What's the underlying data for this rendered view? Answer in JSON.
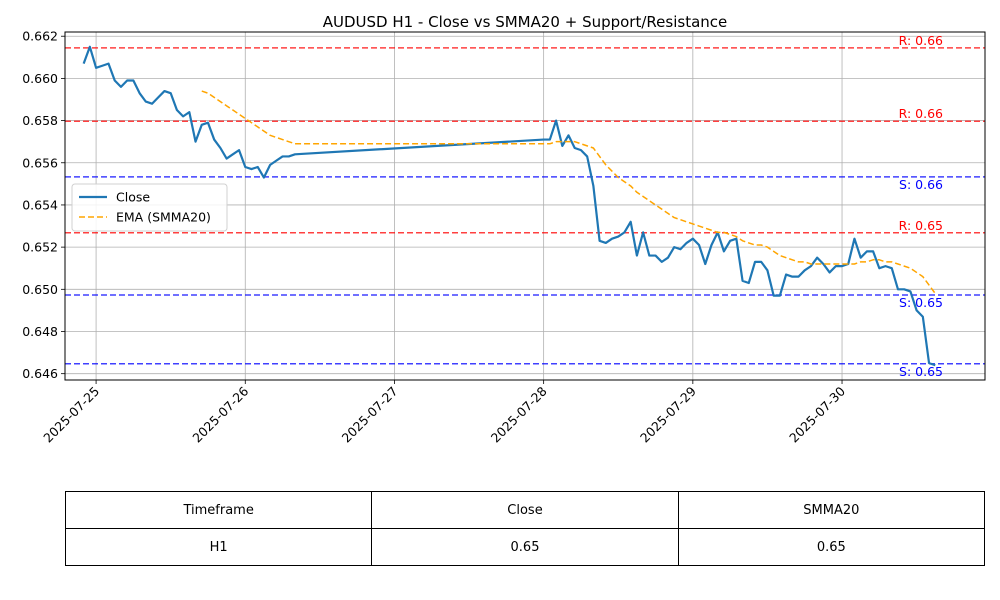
{
  "colors": {
    "close": "#1f77b4",
    "smma": "#ffa500",
    "resistance": "#ff0000",
    "support": "#0000ff",
    "grid": "#b0b0b0"
  },
  "chart_data": {
    "type": "line",
    "title": "AUDUSD H1 - Close vs SMMA20 + Support/Resistance",
    "xlabel": "",
    "ylabel": "",
    "xlim": [
      "2025-07-24 19:00",
      "2025-07-30 23:00"
    ],
    "ylim": [
      0.6457,
      0.6622
    ],
    "x_ticks": [
      "2025-07-25",
      "2025-07-26",
      "2025-07-27",
      "2025-07-28",
      "2025-07-29",
      "2025-07-30"
    ],
    "y_ticks": [
      "0.646",
      "0.648",
      "0.650",
      "0.652",
      "0.654",
      "0.656",
      "0.658",
      "0.660",
      "0.662"
    ],
    "grid": true,
    "legend_position": "center-left",
    "series": [
      {
        "name": "Close",
        "style": "solid",
        "points": [
          [
            "2025-07-24 22:00",
            0.6607
          ],
          [
            "2025-07-24 23:00",
            0.6615
          ],
          [
            "2025-07-25 00:00",
            0.6605
          ],
          [
            "2025-07-25 01:00",
            0.6606
          ],
          [
            "2025-07-25 02:00",
            0.6607
          ],
          [
            "2025-07-25 03:00",
            0.6599
          ],
          [
            "2025-07-25 04:00",
            0.6596
          ],
          [
            "2025-07-25 05:00",
            0.6599
          ],
          [
            "2025-07-25 06:00",
            0.6599
          ],
          [
            "2025-07-25 07:00",
            0.6593
          ],
          [
            "2025-07-25 08:00",
            0.6589
          ],
          [
            "2025-07-25 09:00",
            0.6588
          ],
          [
            "2025-07-25 10:00",
            0.6591
          ],
          [
            "2025-07-25 11:00",
            0.6594
          ],
          [
            "2025-07-25 12:00",
            0.6593
          ],
          [
            "2025-07-25 13:00",
            0.6585
          ],
          [
            "2025-07-25 14:00",
            0.6582
          ],
          [
            "2025-07-25 15:00",
            0.6584
          ],
          [
            "2025-07-25 16:00",
            0.657
          ],
          [
            "2025-07-25 17:00",
            0.6578
          ],
          [
            "2025-07-25 18:00",
            0.6579
          ],
          [
            "2025-07-25 19:00",
            0.6571
          ],
          [
            "2025-07-25 20:00",
            0.6567
          ],
          [
            "2025-07-25 21:00",
            0.6562
          ],
          [
            "2025-07-25 22:00",
            0.6564
          ],
          [
            "2025-07-25 23:00",
            0.6566
          ],
          [
            "2025-07-26 00:00",
            0.6558
          ],
          [
            "2025-07-26 01:00",
            0.6557
          ],
          [
            "2025-07-26 02:00",
            0.6558
          ],
          [
            "2025-07-26 03:00",
            0.6553
          ],
          [
            "2025-07-26 04:00",
            0.6559
          ],
          [
            "2025-07-26 05:00",
            0.6561
          ],
          [
            "2025-07-26 06:00",
            0.6563
          ],
          [
            "2025-07-26 07:00",
            0.6563
          ],
          [
            "2025-07-26 08:00",
            0.6564
          ],
          [
            "2025-07-28 00:00",
            0.6571
          ],
          [
            "2025-07-28 01:00",
            0.6571
          ],
          [
            "2025-07-28 02:00",
            0.658
          ],
          [
            "2025-07-28 03:00",
            0.6568
          ],
          [
            "2025-07-28 04:00",
            0.6573
          ],
          [
            "2025-07-28 05:00",
            0.6567
          ],
          [
            "2025-07-28 06:00",
            0.6566
          ],
          [
            "2025-07-28 07:00",
            0.6563
          ],
          [
            "2025-07-28 08:00",
            0.6549
          ],
          [
            "2025-07-28 09:00",
            0.6523
          ],
          [
            "2025-07-28 10:00",
            0.6522
          ],
          [
            "2025-07-28 11:00",
            0.6524
          ],
          [
            "2025-07-28 12:00",
            0.6525
          ],
          [
            "2025-07-28 13:00",
            0.6527
          ],
          [
            "2025-07-28 14:00",
            0.6532
          ],
          [
            "2025-07-28 15:00",
            0.6516
          ],
          [
            "2025-07-28 16:00",
            0.6527
          ],
          [
            "2025-07-28 17:00",
            0.6516
          ],
          [
            "2025-07-28 18:00",
            0.6516
          ],
          [
            "2025-07-28 19:00",
            0.6513
          ],
          [
            "2025-07-28 20:00",
            0.6515
          ],
          [
            "2025-07-28 21:00",
            0.652
          ],
          [
            "2025-07-28 22:00",
            0.6519
          ],
          [
            "2025-07-28 23:00",
            0.6522
          ],
          [
            "2025-07-29 00:00",
            0.6524
          ],
          [
            "2025-07-29 01:00",
            0.6521
          ],
          [
            "2025-07-29 02:00",
            0.6512
          ],
          [
            "2025-07-29 03:00",
            0.6521
          ],
          [
            "2025-07-29 04:00",
            0.6527
          ],
          [
            "2025-07-29 05:00",
            0.6518
          ],
          [
            "2025-07-29 06:00",
            0.6523
          ],
          [
            "2025-07-29 07:00",
            0.6524
          ],
          [
            "2025-07-29 08:00",
            0.6504
          ],
          [
            "2025-07-29 09:00",
            0.6503
          ],
          [
            "2025-07-29 10:00",
            0.6513
          ],
          [
            "2025-07-29 11:00",
            0.6513
          ],
          [
            "2025-07-29 12:00",
            0.6509
          ],
          [
            "2025-07-29 13:00",
            0.6497
          ],
          [
            "2025-07-29 14:00",
            0.6497
          ],
          [
            "2025-07-29 15:00",
            0.6507
          ],
          [
            "2025-07-29 16:00",
            0.6506
          ],
          [
            "2025-07-29 17:00",
            0.6506
          ],
          [
            "2025-07-29 18:00",
            0.6509
          ],
          [
            "2025-07-29 19:00",
            0.6511
          ],
          [
            "2025-07-29 20:00",
            0.6515
          ],
          [
            "2025-07-29 21:00",
            0.6512
          ],
          [
            "2025-07-29 22:00",
            0.6508
          ],
          [
            "2025-07-29 23:00",
            0.6511
          ],
          [
            "2025-07-30 00:00",
            0.6511
          ],
          [
            "2025-07-30 01:00",
            0.6512
          ],
          [
            "2025-07-30 02:00",
            0.6524
          ],
          [
            "2025-07-30 03:00",
            0.6515
          ],
          [
            "2025-07-30 04:00",
            0.6518
          ],
          [
            "2025-07-30 05:00",
            0.6518
          ],
          [
            "2025-07-30 06:00",
            0.651
          ],
          [
            "2025-07-30 07:00",
            0.6511
          ],
          [
            "2025-07-30 08:00",
            0.651
          ],
          [
            "2025-07-30 09:00",
            0.65
          ],
          [
            "2025-07-30 10:00",
            0.65
          ],
          [
            "2025-07-30 11:00",
            0.6499
          ],
          [
            "2025-07-30 12:00",
            0.649
          ],
          [
            "2025-07-30 13:00",
            0.6487
          ],
          [
            "2025-07-30 14:00",
            0.6465
          ],
          [
            "2025-07-30 15:00",
            0.6464
          ]
        ]
      },
      {
        "name": "EMA (SMMA20)",
        "style": "dashed",
        "points": [
          [
            "2025-07-25 17:00",
            0.6594
          ],
          [
            "2025-07-25 18:00",
            0.6593
          ],
          [
            "2025-07-25 19:00",
            0.6591
          ],
          [
            "2025-07-25 20:00",
            0.6589
          ],
          [
            "2025-07-25 21:00",
            0.6587
          ],
          [
            "2025-07-25 22:00",
            0.6585
          ],
          [
            "2025-07-25 23:00",
            0.6583
          ],
          [
            "2025-07-26 00:00",
            0.6581
          ],
          [
            "2025-07-26 01:00",
            0.6579
          ],
          [
            "2025-07-26 02:00",
            0.6577
          ],
          [
            "2025-07-26 03:00",
            0.6575
          ],
          [
            "2025-07-26 04:00",
            0.6573
          ],
          [
            "2025-07-26 05:00",
            0.6572
          ],
          [
            "2025-07-26 06:00",
            0.6571
          ],
          [
            "2025-07-26 07:00",
            0.657
          ],
          [
            "2025-07-26 08:00",
            0.6569
          ],
          [
            "2025-07-26 10:00",
            0.6569
          ],
          [
            "2025-07-27 00:00",
            0.6569
          ],
          [
            "2025-07-28 00:00",
            0.6569
          ],
          [
            "2025-07-28 01:00",
            0.6569
          ],
          [
            "2025-07-28 02:00",
            0.657
          ],
          [
            "2025-07-28 03:00",
            0.657
          ],
          [
            "2025-07-28 04:00",
            0.657
          ],
          [
            "2025-07-28 05:00",
            0.657
          ],
          [
            "2025-07-28 06:00",
            0.6569
          ],
          [
            "2025-07-28 07:00",
            0.6568
          ],
          [
            "2025-07-28 08:00",
            0.6567
          ],
          [
            "2025-07-28 09:00",
            0.6563
          ],
          [
            "2025-07-28 10:00",
            0.6559
          ],
          [
            "2025-07-28 11:00",
            0.6556
          ],
          [
            "2025-07-28 12:00",
            0.6553
          ],
          [
            "2025-07-28 13:00",
            0.6551
          ],
          [
            "2025-07-28 14:00",
            0.6549
          ],
          [
            "2025-07-28 15:00",
            0.6546
          ],
          [
            "2025-07-28 16:00",
            0.6544
          ],
          [
            "2025-07-28 17:00",
            0.6542
          ],
          [
            "2025-07-28 18:00",
            0.654
          ],
          [
            "2025-07-28 19:00",
            0.6538
          ],
          [
            "2025-07-28 20:00",
            0.6536
          ],
          [
            "2025-07-28 21:00",
            0.6534
          ],
          [
            "2025-07-28 22:00",
            0.6533
          ],
          [
            "2025-07-28 23:00",
            0.6532
          ],
          [
            "2025-07-29 00:00",
            0.6531
          ],
          [
            "2025-07-29 01:00",
            0.653
          ],
          [
            "2025-07-29 02:00",
            0.6529
          ],
          [
            "2025-07-29 03:00",
            0.6528
          ],
          [
            "2025-07-29 04:00",
            0.6527
          ],
          [
            "2025-07-29 05:00",
            0.6527
          ],
          [
            "2025-07-29 06:00",
            0.6526
          ],
          [
            "2025-07-29 07:00",
            0.6525
          ],
          [
            "2025-07-29 08:00",
            0.6523
          ],
          [
            "2025-07-29 09:00",
            0.6522
          ],
          [
            "2025-07-29 10:00",
            0.6521
          ],
          [
            "2025-07-29 11:00",
            0.6521
          ],
          [
            "2025-07-29 12:00",
            0.652
          ],
          [
            "2025-07-29 13:00",
            0.6518
          ],
          [
            "2025-07-29 14:00",
            0.6516
          ],
          [
            "2025-07-29 15:00",
            0.6515
          ],
          [
            "2025-07-29 16:00",
            0.6514
          ],
          [
            "2025-07-29 17:00",
            0.6513
          ],
          [
            "2025-07-29 18:00",
            0.6513
          ],
          [
            "2025-07-29 19:00",
            0.6512
          ],
          [
            "2025-07-29 20:00",
            0.6512
          ],
          [
            "2025-07-29 21:00",
            0.6512
          ],
          [
            "2025-07-29 22:00",
            0.6512
          ],
          [
            "2025-07-29 23:00",
            0.6512
          ],
          [
            "2025-07-30 00:00",
            0.6512
          ],
          [
            "2025-07-30 01:00",
            0.6512
          ],
          [
            "2025-07-30 02:00",
            0.6512
          ],
          [
            "2025-07-30 03:00",
            0.6513
          ],
          [
            "2025-07-30 04:00",
            0.6513
          ],
          [
            "2025-07-30 05:00",
            0.6514
          ],
          [
            "2025-07-30 06:00",
            0.6514
          ],
          [
            "2025-07-30 07:00",
            0.6513
          ],
          [
            "2025-07-30 08:00",
            0.6513
          ],
          [
            "2025-07-30 09:00",
            0.6512
          ],
          [
            "2025-07-30 10:00",
            0.6511
          ],
          [
            "2025-07-30 11:00",
            0.651
          ],
          [
            "2025-07-30 12:00",
            0.6508
          ],
          [
            "2025-07-30 13:00",
            0.6506
          ],
          [
            "2025-07-30 14:00",
            0.6502
          ],
          [
            "2025-07-30 15:00",
            0.6498
          ]
        ]
      }
    ],
    "levels": [
      {
        "kind": "resistance",
        "value": 0.66145,
        "label": "R: 0.66"
      },
      {
        "kind": "resistance",
        "value": 0.65797,
        "label": "R: 0.66"
      },
      {
        "kind": "support",
        "value": 0.65533,
        "label": "S: 0.66"
      },
      {
        "kind": "resistance",
        "value": 0.65268,
        "label": "R: 0.65"
      },
      {
        "kind": "support",
        "value": 0.64973,
        "label": "S: 0.65"
      },
      {
        "kind": "support",
        "value": 0.64647,
        "label": "S: 0.65"
      }
    ]
  },
  "table": {
    "headers": [
      "Timeframe",
      "Close",
      "SMMA20"
    ],
    "rows": [
      [
        "H1",
        "0.65",
        "0.65"
      ]
    ]
  }
}
